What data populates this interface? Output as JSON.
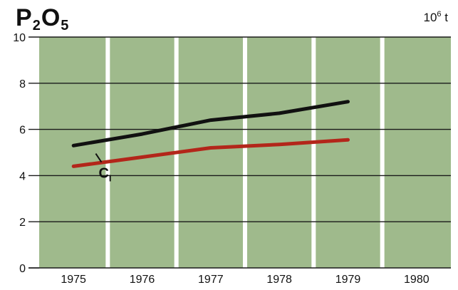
{
  "chart_data": {
    "type": "line",
    "title_parts": [
      "P",
      "2",
      "O",
      "5"
    ],
    "unit_parts": [
      "10",
      "6",
      " t"
    ],
    "x": [
      1975,
      1976,
      1977,
      1978,
      1979
    ],
    "x_ticks": [
      "1975",
      "1976",
      "1977",
      "1978",
      "1979",
      "1980"
    ],
    "y_ticks": [
      "0",
      "2",
      "4",
      "6",
      "8",
      "10"
    ],
    "ylim": [
      0,
      10
    ],
    "xlim": [
      1974.5,
      1980.5
    ],
    "grid": true,
    "series": [
      {
        "values": [
          5.3,
          5.8,
          6.4,
          6.7,
          7.2
        ]
      },
      {
        "name": "CI",
        "values": [
          4.4,
          4.8,
          5.2,
          5.35,
          5.55
        ]
      }
    ],
    "series_label_display": "C",
    "series_label_sub": "I"
  },
  "colors": {
    "plot_background": "#9fba8c",
    "stripe": "#ffffff",
    "gridline": "#1a1a1a",
    "series": [
      "#111111",
      "#b3261a"
    ],
    "text": "#111111"
  }
}
